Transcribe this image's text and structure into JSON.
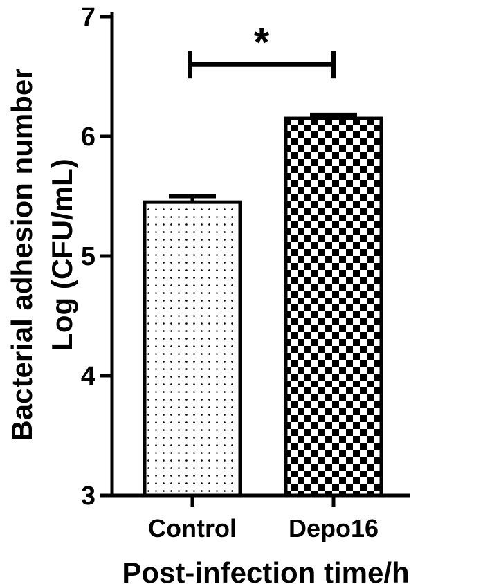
{
  "chart_data": {
    "type": "bar",
    "categories": [
      "Control",
      "Depo16"
    ],
    "values": [
      5.45,
      6.15
    ],
    "errors": [
      0.05,
      0.03
    ],
    "patterns": [
      "dots",
      "checker"
    ],
    "ylim": [
      3,
      7
    ],
    "yticks": [
      "3",
      "4",
      "5",
      "6",
      "7"
    ],
    "xlabel": "Post-infection time/h",
    "ylabel_line1": "Bacterial adhesion number",
    "ylabel_line2": "Log (CFU/mL)",
    "significance": {
      "label": "*",
      "bracket_y": 6.6,
      "between": [
        0,
        1
      ]
    },
    "grid": false,
    "legend": "none",
    "colors": {
      "bar_stroke": "#000000",
      "fill_background": "#ffffff",
      "pattern": "#000000"
    }
  }
}
